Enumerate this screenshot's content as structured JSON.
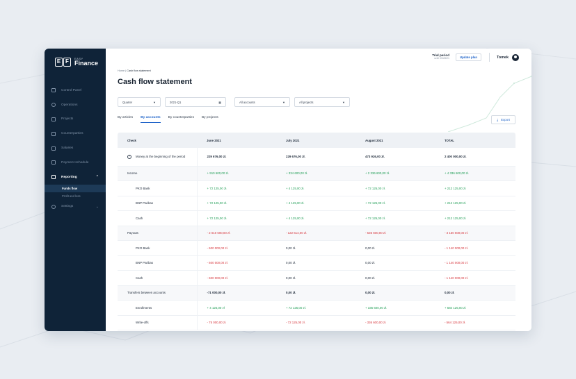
{
  "app": {
    "logo_small": "EASY",
    "logo_big": "Finance",
    "logo_mark": [
      "E",
      "F"
    ]
  },
  "sidebar": {
    "items": [
      {
        "label": "Control Panel",
        "icon": "bar-chart-icon"
      },
      {
        "label": "Operations",
        "icon": "circle-dollar-icon"
      },
      {
        "label": "Projects",
        "icon": "document-icon"
      },
      {
        "label": "Counterparties",
        "icon": "contacts-icon"
      },
      {
        "label": "Salaries",
        "icon": "wallet-icon"
      },
      {
        "label": "Payment schedule",
        "icon": "calendar-check-icon"
      },
      {
        "label": "Reporting",
        "icon": "report-icon"
      }
    ],
    "sub_items": [
      {
        "label": "Funds flow"
      },
      {
        "label": "Profit and loss"
      }
    ],
    "settings": {
      "label": "Settings",
      "icon": "gear-icon"
    }
  },
  "topbar": {
    "trial_title": "Trial period",
    "trial_sub": "until 09/28/21",
    "update_plan": "Update plan",
    "user_name": "Tomek"
  },
  "breadcrumb": {
    "home": "Home",
    "separator": "|",
    "current": "Cash flow statement"
  },
  "page_title": "Cash flow statement",
  "filters": {
    "period": "Quarter",
    "date": "2021-Q1",
    "accounts": "All accounts",
    "projects": "All projects"
  },
  "tabs": [
    "By articles",
    "By accounts",
    "By counterparties",
    "By projects"
  ],
  "export_label": "Export",
  "table": {
    "headers": [
      "Check",
      "June 2021",
      "July 2021",
      "August 2021",
      "TOTAL"
    ],
    "rows": [
      {
        "label": "Money at the beginning of the period",
        "values": [
          "229 676,00 zł.",
          "229 676,00 zł.",
          "473 926,00 zł.",
          "2 400 000,00 zł."
        ]
      },
      {
        "label": "Income",
        "values": [
          "+ 910 600,00 zł.",
          "+ 334 600,00 zł.",
          "+ 2 336 600,00 zł.",
          "+ 4 336 600,00 zł."
        ]
      },
      {
        "label": "PKO Bank",
        "values": [
          "+ 72 125,00 zł.",
          "+ 4 125,00 zł.",
          "+ 72 125,00 zł.",
          "+ 212 125,00 zł."
        ]
      },
      {
        "label": "BNP Paribas",
        "values": [
          "+ 72 125,00 zł.",
          "+ 4 125,00 zł.",
          "+ 72 125,00 zł.",
          "+ 212 125,00 zł."
        ]
      },
      {
        "label": "Cash",
        "values": [
          "+ 72 125,00 zł.",
          "+ 4 125,00 zł.",
          "+ 72 125,00 zł.",
          "+ 212 125,00 zł."
        ]
      },
      {
        "label": "Payouts",
        "values": [
          "- 2 010 600,00 zł.",
          "- 122 614,00 zł.",
          "- 536 600,00 zł.",
          "- 3 150 600,00 zł."
        ]
      },
      {
        "label": "PKO Bank",
        "values": [
          "- 600 000,00 zł.",
          "0,00 zł.",
          "0,00 zł.",
          "- 1 140 000,00 zł."
        ]
      },
      {
        "label": "BNP Paribas",
        "values": [
          "- 600 000,00 zł.",
          "0,00 zł.",
          "0,00 zł.",
          "- 1 140 000,00 zł."
        ]
      },
      {
        "label": "Cash",
        "values": [
          "- 600 000,00 zł.",
          "0,00 zł.",
          "0,00 zł.",
          "- 1 140 000,00 zł."
        ]
      },
      {
        "label": "Transfers between accounts",
        "values": [
          "-71 000,00 zł.",
          "0,00 zł.",
          "0,00 zł.",
          "0,00 zł."
        ]
      },
      {
        "label": "Enrollments",
        "values": [
          "+ 4 125,00 zł",
          "+ 72 125,00 zł.",
          "+ 336 600,00 zł.",
          "+ 584 125,00 zł."
        ]
      },
      {
        "label": "Write-offs",
        "values": [
          "- 75 000,00 zł.",
          "- 72 125,00 zł.",
          "- 336 600,00 zł.",
          "- 564 125,00 zł."
        ]
      }
    ]
  },
  "colors": {
    "sidebar_bg": "#0f2338",
    "accent": "#1e63c9",
    "positive": "#1f9d55",
    "negative": "#d6343b"
  }
}
